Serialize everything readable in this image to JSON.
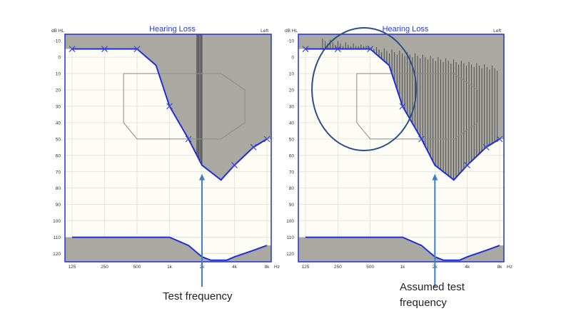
{
  "figure": {
    "captions": {
      "left": "Test frequency",
      "right_line1": "Assumed test",
      "right_line2": "frequency"
    }
  },
  "colors": {
    "frame": "#2233cc",
    "title": "#2a3bd6",
    "chart_bg": "#fdfcf5",
    "region": "#a9a8a1",
    "stripes": "#444444",
    "trace": "#1f2fd6",
    "marker": "#3a48d8",
    "arrow": "#3f7fc8",
    "circle": "#2b4f8a",
    "banana": "#8a8a8a",
    "grid": "#d9d8d0"
  },
  "chart_data": [
    {
      "type": "line",
      "title": "Hearing Loss",
      "ylabel": "dB HL",
      "ear_label": "Left",
      "x_unit": "Hz",
      "x_ticks": [
        "125",
        "250",
        "500",
        "1k",
        "2k",
        "4k",
        "8k"
      ],
      "y_ticks": [
        -10,
        0,
        10,
        20,
        30,
        40,
        50,
        60,
        70,
        80,
        90,
        100,
        110,
        120
      ],
      "ylim": [
        -14,
        125
      ],
      "y_inverted": true,
      "x_log2_octaves_from_125": true,
      "series": [
        {
          "role": "threshold",
          "x": [
            125,
            250,
            500,
            750,
            1000,
            1500,
            2000,
            3000,
            4000,
            6000,
            8000
          ],
          "y": [
            -5,
            -5,
            -5,
            5,
            30,
            50,
            66,
            75,
            66,
            55,
            50
          ],
          "markers": [
            125,
            250,
            500,
            1000,
            1500,
            4000,
            6000,
            8000
          ]
        },
        {
          "role": "upper-limit",
          "x": [
            125,
            1000,
            1500,
            2000,
            2400,
            3400,
            4000,
            6000,
            8000
          ],
          "y": [
            110,
            110,
            115,
            122,
            124,
            124,
            122,
            118,
            115
          ]
        }
      ],
      "speech_banana": [
        [
          375,
          10
        ],
        [
          3000,
          10
        ],
        [
          5000,
          20
        ],
        [
          5000,
          40
        ],
        [
          3000,
          50
        ],
        [
          500,
          50
        ],
        [
          375,
          40
        ]
      ],
      "dead_region_stripes": [
        1800,
        2050
      ],
      "annotation": {
        "caption": "Test frequency",
        "x": 2000
      }
    },
    {
      "type": "line",
      "title": "Hearing Loss",
      "ylabel": "dB HL",
      "ear_label": "Left",
      "x_unit": "Hz",
      "x_ticks": [
        "125",
        "250",
        "500",
        "1k",
        "2k",
        "4k",
        "8k"
      ],
      "y_ticks": [
        -10,
        0,
        10,
        20,
        30,
        40,
        50,
        60,
        70,
        80,
        90,
        100,
        110,
        120
      ],
      "ylim": [
        -14,
        125
      ],
      "y_inverted": true,
      "series": [
        {
          "role": "threshold",
          "x": [
            125,
            250,
            500,
            750,
            1000,
            1500,
            2000,
            3000,
            4000,
            6000,
            8000
          ],
          "y": [
            -5,
            -5,
            -5,
            5,
            30,
            50,
            66,
            75,
            66,
            55,
            50
          ],
          "markers": [
            125,
            250,
            500,
            1000,
            1500,
            4000,
            6000,
            8000
          ]
        },
        {
          "role": "upper-limit",
          "x": [
            125,
            1000,
            1500,
            2000,
            2400,
            3400,
            4000,
            6000,
            8000
          ],
          "y": [
            110,
            110,
            115,
            122,
            124,
            124,
            122,
            118,
            115
          ]
        }
      ],
      "speech_banana": [
        [
          375,
          10
        ],
        [
          3000,
          10
        ],
        [
          5000,
          20
        ],
        [
          5000,
          40
        ],
        [
          3000,
          50
        ],
        [
          500,
          50
        ],
        [
          375,
          40
        ]
      ],
      "dead_region_stripes": [
        180,
        8000
      ],
      "highlight_ellipse": {
        "x_center": 400,
        "y_center": 20
      },
      "annotation": {
        "caption": "Assumed test frequency",
        "x": 2000
      }
    }
  ]
}
